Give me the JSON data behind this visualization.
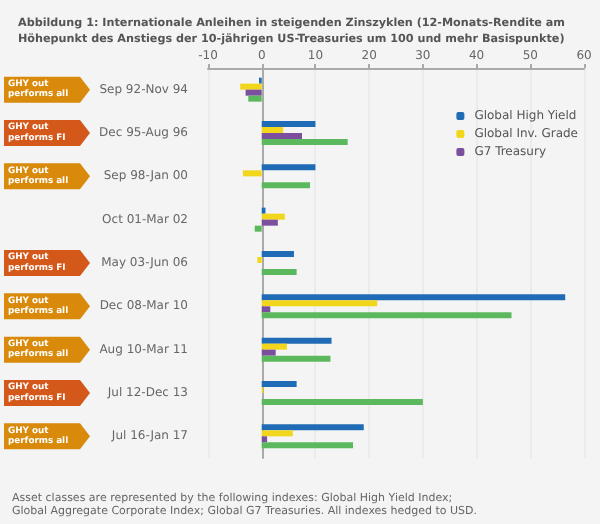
{
  "chart_data": {
    "type": "bar",
    "orientation": "horizontal",
    "title": "Abbildung 1: Internationale Anleihen in steigenden Zinszyklen (12-Monats-Rendite am Höhepunkt des Anstiegs der 10-jährigen US-Treasuries um 100 und mehr Basispunkte)",
    "categories": [
      "Sep 92-Nov 94",
      "Dec 95-Aug 96",
      "Sep 98-Jan 00",
      "Oct 01-Mar 02",
      "May 03-Jun 06",
      "Dec 08-Mar 10",
      "Aug 10-Mar 11",
      "Jul 12-Dec 13",
      "Jul 16-Jan 17"
    ],
    "series": [
      {
        "name": "Global High Yield",
        "color": "#1f6bb5",
        "values": [
          -0.5,
          10,
          10,
          0.7,
          6,
          56.5,
          13,
          6.5,
          19
        ]
      },
      {
        "name": "Global Inv. Grade",
        "color": "#f2d61c",
        "values": [
          -4,
          4,
          -3.5,
          4.3,
          -0.8,
          21.5,
          4.7,
          0.3,
          5.8
        ]
      },
      {
        "name": "G7 Treasury",
        "color": "#7b4f9e",
        "values": [
          -3,
          7.5,
          0,
          3,
          0,
          1.6,
          2.6,
          0,
          1
        ]
      },
      {
        "color": "#5cb85c",
        "values": [
          -2.5,
          16,
          9,
          -1.3,
          6.5,
          46.5,
          12.8,
          30,
          17
        ]
      }
    ],
    "xlim": [
      -10,
      60
    ],
    "xticks": [
      -10,
      0,
      10,
      20,
      30,
      40,
      50,
      60
    ],
    "grid": "x",
    "legend": "top right",
    "annotations": [
      "GHY out performs all",
      "GHY out performs FI",
      "GHY out performs all",
      "GHY out performs FI",
      "GHY out performs all",
      "GHY out performs all",
      "GHY out performs FI",
      "GHY out performs all",
      "Asset classes are represented by the following indexes: Global High Yield Index; Global Aggregate Corporate Index; Global G7 Treasuries. All indexes hedged to USD."
    ]
  }
}
